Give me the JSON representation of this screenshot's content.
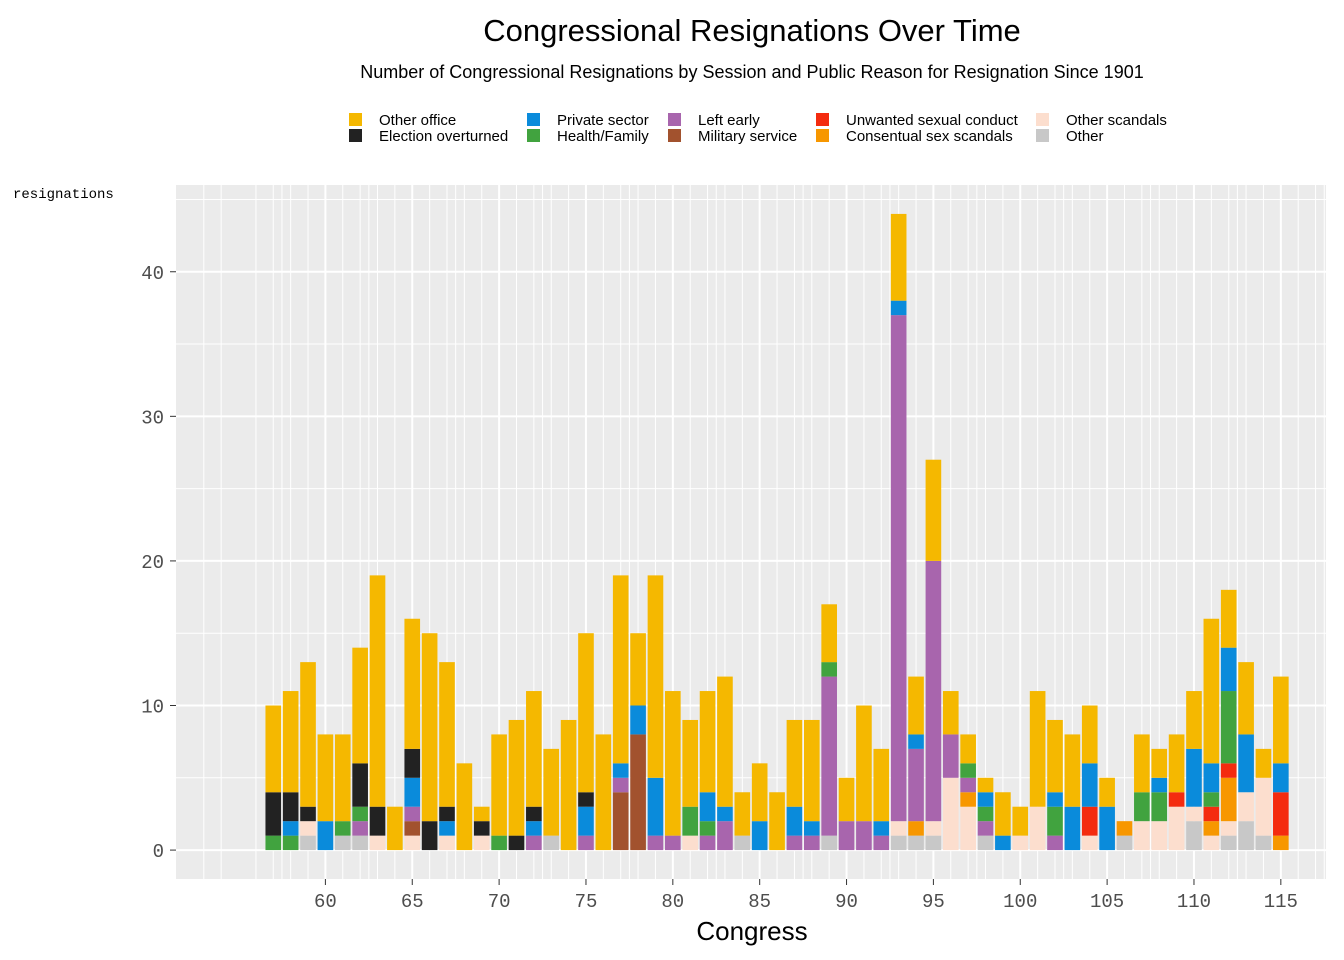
{
  "chart_data": {
    "type": "bar",
    "stacked": true,
    "title": "Congressional Resignations Over Time",
    "subtitle": "Number of Congressional Resignations by Session and Public Reason for Resignation Since 1901",
    "xlabel": "Congress",
    "ylabel": "resignations",
    "xlim": [
      51.4,
      117.6
    ],
    "ylim": [
      -2.0,
      46.0
    ],
    "x_ticks": [
      60,
      65,
      70,
      75,
      80,
      85,
      90,
      95,
      100,
      105,
      110,
      115
    ],
    "y_ticks": [
      0,
      10,
      20,
      30,
      40
    ],
    "grid": true,
    "legend_position": "top",
    "series_order": [
      "Other",
      "Other scandals",
      "Consentual sex scandals",
      "Unwanted sexual conduct",
      "Military service",
      "Left early",
      "Health/Family",
      "Private sector",
      "Election overturned",
      "Other office"
    ],
    "legend": [
      {
        "name": "Other office",
        "color": "#F5B800"
      },
      {
        "name": "Election overturned",
        "color": "#222222"
      },
      {
        "name": "Private sector",
        "color": "#0A8BDB"
      },
      {
        "name": "Health/Family",
        "color": "#41A33F"
      },
      {
        "name": "Left early",
        "color": "#A865AD"
      },
      {
        "name": "Military service",
        "color": "#A2522E"
      },
      {
        "name": "Unwanted sexual conduct",
        "color": "#F42B0F"
      },
      {
        "name": "Consentual sex scandals",
        "color": "#F79700"
      },
      {
        "name": "Other scandals",
        "color": "#FCDECE"
      },
      {
        "name": "Other",
        "color": "#C8C8C8"
      }
    ],
    "bars": [
      {
        "congress": 57,
        "values": {
          "Health/Family": 1,
          "Election overturned": 3,
          "Other office": 6
        }
      },
      {
        "congress": 58,
        "values": {
          "Health/Family": 1,
          "Private sector": 1,
          "Election overturned": 2,
          "Other office": 7
        }
      },
      {
        "congress": 59,
        "values": {
          "Other": 1,
          "Other scandals": 1,
          "Election overturned": 1,
          "Other office": 10
        }
      },
      {
        "congress": 60,
        "values": {
          "Private sector": 2,
          "Other office": 6
        }
      },
      {
        "congress": 61,
        "values": {
          "Other": 1,
          "Health/Family": 1,
          "Other office": 6
        }
      },
      {
        "congress": 62,
        "values": {
          "Other": 1,
          "Left early": 1,
          "Health/Family": 1,
          "Election overturned": 3,
          "Other office": 8
        }
      },
      {
        "congress": 63,
        "values": {
          "Other scandals": 1,
          "Election overturned": 2,
          "Other office": 16
        }
      },
      {
        "congress": 64,
        "values": {
          "Other office": 3
        }
      },
      {
        "congress": 65,
        "values": {
          "Other scandals": 1,
          "Military service": 1,
          "Left early": 1,
          "Private sector": 2,
          "Election overturned": 2,
          "Other office": 9
        }
      },
      {
        "congress": 66,
        "values": {
          "Election overturned": 2,
          "Other office": 13
        }
      },
      {
        "congress": 67,
        "values": {
          "Other scandals": 1,
          "Private sector": 1,
          "Election overturned": 1,
          "Other office": 10
        }
      },
      {
        "congress": 68,
        "values": {
          "Other office": 6
        }
      },
      {
        "congress": 69,
        "values": {
          "Other scandals": 1,
          "Election overturned": 1,
          "Other office": 1
        }
      },
      {
        "congress": 70,
        "values": {
          "Health/Family": 1,
          "Other office": 7
        }
      },
      {
        "congress": 71,
        "values": {
          "Election overturned": 1,
          "Other office": 8
        }
      },
      {
        "congress": 72,
        "values": {
          "Left early": 1,
          "Private sector": 1,
          "Election overturned": 1,
          "Other office": 8
        }
      },
      {
        "congress": 73,
        "values": {
          "Other": 1,
          "Other office": 6
        }
      },
      {
        "congress": 74,
        "values": {
          "Other office": 9
        }
      },
      {
        "congress": 75,
        "values": {
          "Left early": 1,
          "Private sector": 2,
          "Election overturned": 1,
          "Other office": 11
        }
      },
      {
        "congress": 76,
        "values": {
          "Other office": 8
        }
      },
      {
        "congress": 77,
        "values": {
          "Military service": 4,
          "Left early": 1,
          "Private sector": 1,
          "Other office": 13
        }
      },
      {
        "congress": 78,
        "values": {
          "Military service": 8,
          "Private sector": 2,
          "Other office": 5
        }
      },
      {
        "congress": 79,
        "values": {
          "Left early": 1,
          "Private sector": 4,
          "Other office": 14
        }
      },
      {
        "congress": 80,
        "values": {
          "Left early": 1,
          "Other office": 10
        }
      },
      {
        "congress": 81,
        "values": {
          "Other scandals": 1,
          "Health/Family": 2,
          "Other office": 6
        }
      },
      {
        "congress": 82,
        "values": {
          "Left early": 1,
          "Health/Family": 1,
          "Private sector": 2,
          "Other office": 7
        }
      },
      {
        "congress": 83,
        "values": {
          "Left early": 2,
          "Private sector": 1,
          "Other office": 9
        }
      },
      {
        "congress": 84,
        "values": {
          "Other": 1,
          "Other office": 3
        }
      },
      {
        "congress": 85,
        "values": {
          "Private sector": 2,
          "Other office": 4
        }
      },
      {
        "congress": 86,
        "values": {
          "Other office": 4
        }
      },
      {
        "congress": 87,
        "values": {
          "Left early": 1,
          "Private sector": 2,
          "Other office": 6
        }
      },
      {
        "congress": 88,
        "values": {
          "Left early": 1,
          "Private sector": 1,
          "Other office": 7
        }
      },
      {
        "congress": 89,
        "values": {
          "Other": 1,
          "Left early": 11,
          "Health/Family": 1,
          "Other office": 4
        }
      },
      {
        "congress": 90,
        "values": {
          "Left early": 2,
          "Other office": 3
        }
      },
      {
        "congress": 91,
        "values": {
          "Left early": 2,
          "Other office": 8
        }
      },
      {
        "congress": 92,
        "values": {
          "Left early": 1,
          "Private sector": 1,
          "Other office": 5
        }
      },
      {
        "congress": 93,
        "values": {
          "Other": 1,
          "Other scandals": 1,
          "Left early": 35,
          "Private sector": 1,
          "Other office": 6
        }
      },
      {
        "congress": 94,
        "values": {
          "Other": 1,
          "Consentual sex scandals": 1,
          "Left early": 5,
          "Private sector": 1,
          "Other office": 4
        }
      },
      {
        "congress": 95,
        "values": {
          "Other": 1,
          "Other scandals": 1,
          "Left early": 18,
          "Other office": 7
        }
      },
      {
        "congress": 96,
        "values": {
          "Other scandals": 5,
          "Left early": 3,
          "Other office": 3
        }
      },
      {
        "congress": 97,
        "values": {
          "Other scandals": 3,
          "Consentual sex scandals": 1,
          "Left early": 1,
          "Health/Family": 1,
          "Other office": 2
        }
      },
      {
        "congress": 98,
        "values": {
          "Other": 1,
          "Left early": 1,
          "Health/Family": 1,
          "Private sector": 1,
          "Other office": 1
        }
      },
      {
        "congress": 99,
        "values": {
          "Private sector": 1,
          "Other office": 3
        }
      },
      {
        "congress": 100,
        "values": {
          "Other scandals": 1,
          "Other office": 2
        }
      },
      {
        "congress": 101,
        "values": {
          "Other scandals": 3,
          "Other office": 8
        }
      },
      {
        "congress": 102,
        "values": {
          "Left early": 1,
          "Health/Family": 2,
          "Private sector": 1,
          "Other office": 5
        }
      },
      {
        "congress": 103,
        "values": {
          "Private sector": 3,
          "Other office": 5
        }
      },
      {
        "congress": 104,
        "values": {
          "Other scandals": 1,
          "Unwanted sexual conduct": 2,
          "Private sector": 3,
          "Other office": 4
        }
      },
      {
        "congress": 105,
        "values": {
          "Private sector": 3,
          "Other office": 2
        }
      },
      {
        "congress": 106,
        "values": {
          "Other": 1,
          "Consentual sex scandals": 1
        }
      },
      {
        "congress": 107,
        "values": {
          "Other scandals": 2,
          "Health/Family": 2,
          "Other office": 4
        }
      },
      {
        "congress": 108,
        "values": {
          "Other scandals": 2,
          "Health/Family": 2,
          "Private sector": 1,
          "Other office": 2
        }
      },
      {
        "congress": 109,
        "values": {
          "Other scandals": 3,
          "Unwanted sexual conduct": 1,
          "Other office": 4
        }
      },
      {
        "congress": 110,
        "values": {
          "Other": 2,
          "Other scandals": 1,
          "Private sector": 4,
          "Other office": 4
        }
      },
      {
        "congress": 111,
        "values": {
          "Other scandals": 1,
          "Consentual sex scandals": 1,
          "Unwanted sexual conduct": 1,
          "Health/Family": 1,
          "Private sector": 2,
          "Other office": 10
        }
      },
      {
        "congress": 112,
        "values": {
          "Other": 1,
          "Other scandals": 1,
          "Consentual sex scandals": 3,
          "Unwanted sexual conduct": 1,
          "Health/Family": 5,
          "Private sector": 3,
          "Other office": 4
        }
      },
      {
        "congress": 113,
        "values": {
          "Other": 2,
          "Other scandals": 2,
          "Private sector": 4,
          "Other office": 5
        }
      },
      {
        "congress": 114,
        "values": {
          "Other": 1,
          "Other scandals": 4,
          "Other office": 2
        }
      },
      {
        "congress": 115,
        "values": {
          "Consentual sex scandals": 1,
          "Unwanted sexual conduct": 3,
          "Private sector": 2,
          "Other office": 6
        }
      }
    ]
  }
}
